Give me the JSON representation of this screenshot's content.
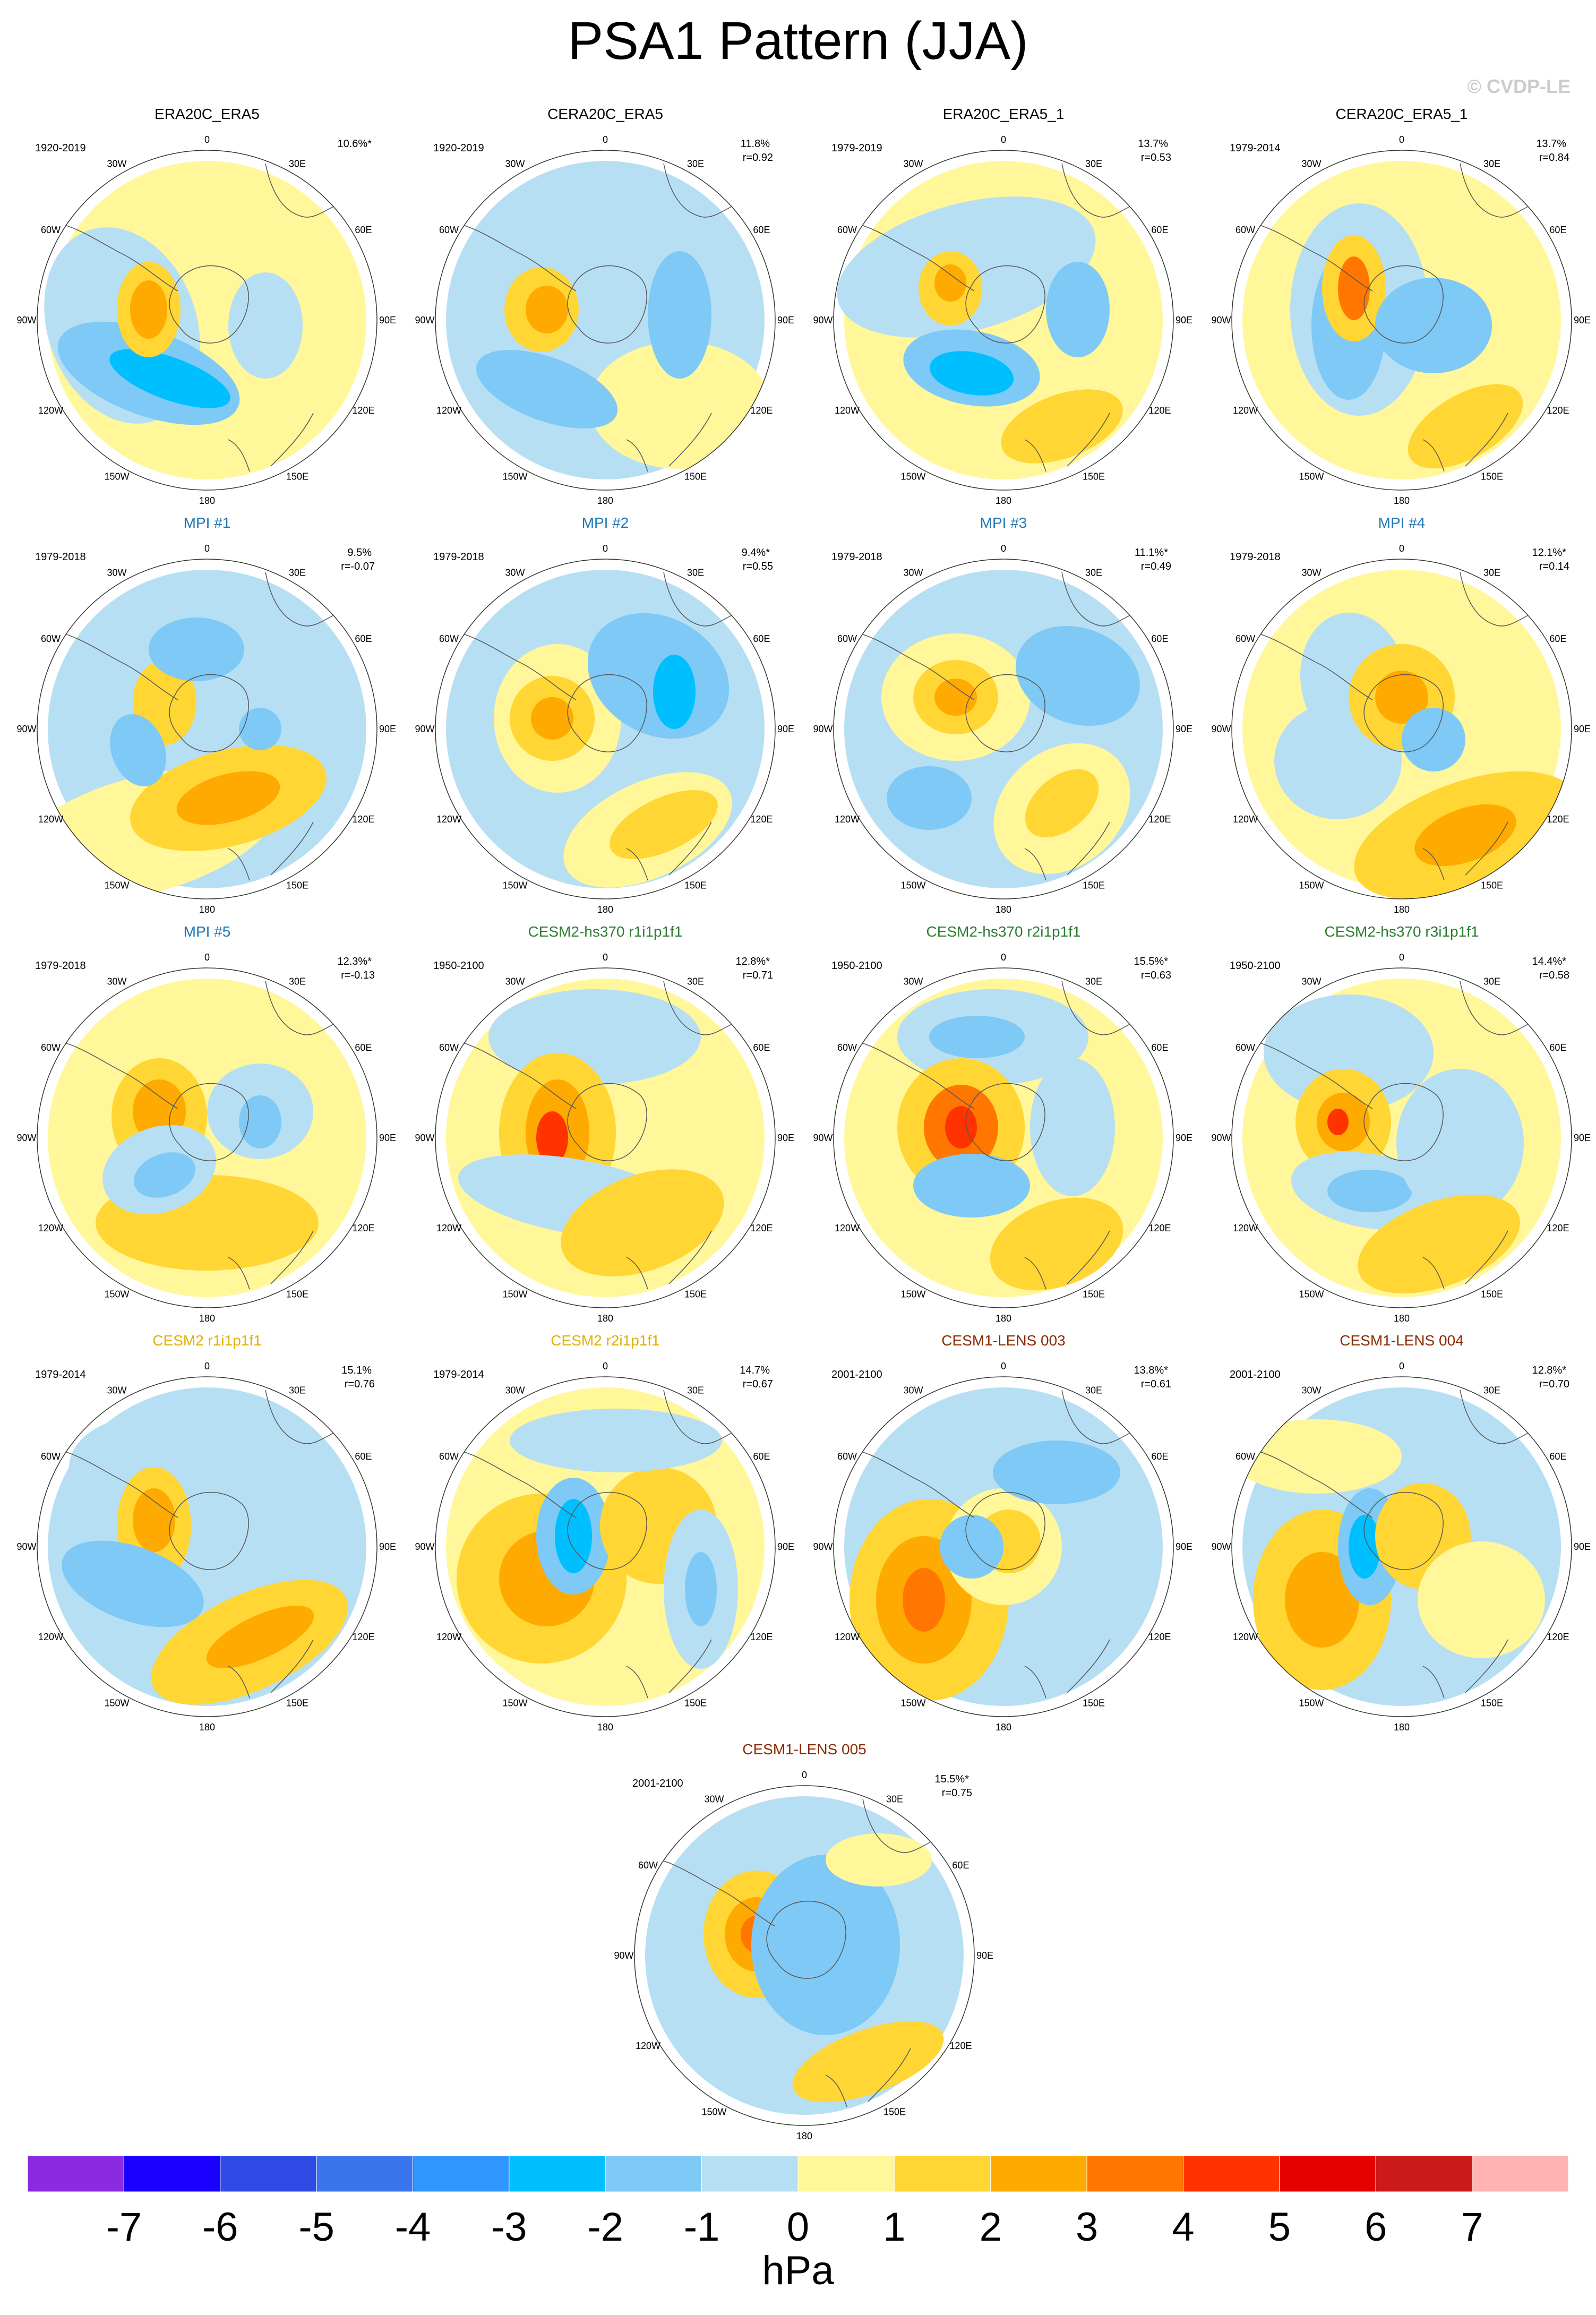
{
  "title": "PSA1 Pattern (JJA)",
  "watermark": "© CVDP-LE",
  "units": "hPa",
  "colors": {
    "obs_title": "#000000",
    "mpi_title": "#1f77b4",
    "cesm2_hs_title": "#2e7d32",
    "cesm2_title": "#e0b000",
    "lens_title": "#8b2a00"
  },
  "longitude_labels": [
    "0",
    "30E",
    "60E",
    "90E",
    "120E",
    "150E",
    "180",
    "150W",
    "120W",
    "90W",
    "60W",
    "30W"
  ],
  "colorbar": {
    "colors": [
      "#8a2be2",
      "#1a00ff",
      "#2e4be6",
      "#3b75ee",
      "#2f95ff",
      "#00bfff",
      "#7ec9f5",
      "#b7dff4",
      "#fff79a",
      "#ffd633",
      "#ffaa00",
      "#ff7700",
      "#ff3300",
      "#e60000",
      "#cc1a1a",
      "#ffb3b3"
    ],
    "labels": [
      "-7",
      "-6",
      "-5",
      "-4",
      "-3",
      "-2",
      "-1",
      "0",
      "1",
      "2",
      "3",
      "4",
      "5",
      "6",
      "7"
    ]
  },
  "panels": [
    {
      "title": "ERA20C_ERA5",
      "title_color": "obs",
      "period": "1920-2019",
      "pct": "10.6%*",
      "corr": ""
    },
    {
      "title": "CERA20C_ERA5",
      "title_color": "obs",
      "period": "1920-2019",
      "pct": "11.8%",
      "corr": "r=0.92"
    },
    {
      "title": "ERA20C_ERA5_1",
      "title_color": "obs",
      "period": "1979-2019",
      "pct": "13.7%",
      "corr": "r=0.53"
    },
    {
      "title": "CERA20C_ERA5_1",
      "title_color": "obs",
      "period": "1979-2014",
      "pct": "13.7%",
      "corr": "r=0.84"
    },
    {
      "title": "MPI #1",
      "title_color": "mpi",
      "period": "1979-2018",
      "pct": "9.5%",
      "corr": "r=-0.07"
    },
    {
      "title": "MPI #2",
      "title_color": "mpi",
      "period": "1979-2018",
      "pct": "9.4%*",
      "corr": "r=0.55"
    },
    {
      "title": "MPI #3",
      "title_color": "mpi",
      "period": "1979-2018",
      "pct": "11.1%*",
      "corr": "r=0.49"
    },
    {
      "title": "MPI #4",
      "title_color": "mpi",
      "period": "1979-2018",
      "pct": "12.1%*",
      "corr": "r=0.14"
    },
    {
      "title": "MPI #5",
      "title_color": "mpi",
      "period": "1979-2018",
      "pct": "12.3%*",
      "corr": "r=-0.13"
    },
    {
      "title": "CESM2-hs370 r1i1p1f1",
      "title_color": "cesm2_hs",
      "period": "1950-2100",
      "pct": "12.8%*",
      "corr": "r=0.71"
    },
    {
      "title": "CESM2-hs370 r2i1p1f1",
      "title_color": "cesm2_hs",
      "period": "1950-2100",
      "pct": "15.5%*",
      "corr": "r=0.63"
    },
    {
      "title": "CESM2-hs370 r3i1p1f1",
      "title_color": "cesm2_hs",
      "period": "1950-2100",
      "pct": "14.4%*",
      "corr": "r=0.58"
    },
    {
      "title": "CESM2 r1i1p1f1",
      "title_color": "cesm2",
      "period": "1979-2014",
      "pct": "15.1%",
      "corr": "r=0.76"
    },
    {
      "title": "CESM2 r2i1p1f1",
      "title_color": "cesm2",
      "period": "1979-2014",
      "pct": "14.7%",
      "corr": "r=0.67"
    },
    {
      "title": "CESM1-LENS 003",
      "title_color": "lens",
      "period": "2001-2100",
      "pct": "13.8%*",
      "corr": "r=0.61"
    },
    {
      "title": "CESM1-LENS 004",
      "title_color": "lens",
      "period": "2001-2100",
      "pct": "12.8%*",
      "corr": "r=0.70"
    },
    {
      "title": "CESM1-LENS 005",
      "title_color": "lens",
      "period": "2001-2100",
      "pct": "15.5%*",
      "corr": "r=0.75"
    }
  ]
}
